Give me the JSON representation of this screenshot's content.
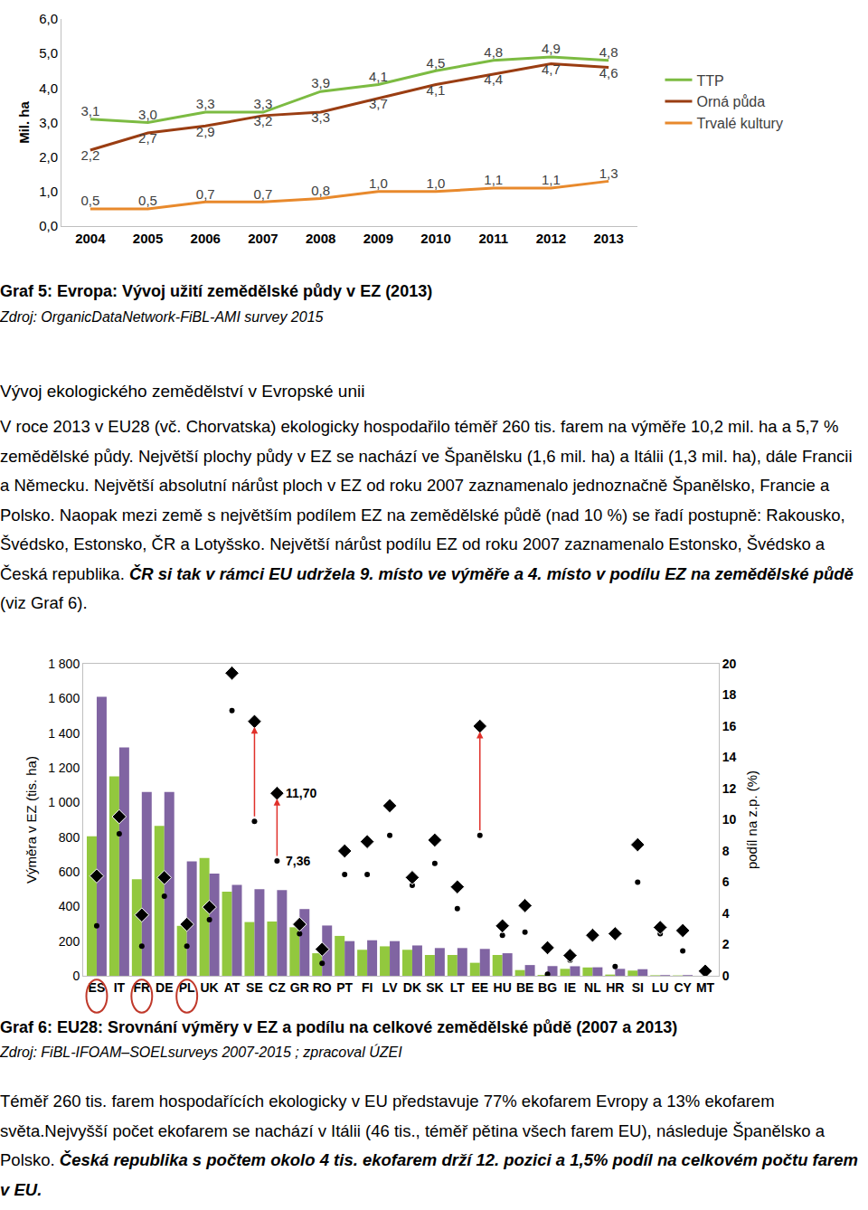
{
  "chart_data": [
    {
      "type": "line",
      "ylabel": "Mil. ha",
      "categories": [
        "2004",
        "2005",
        "2006",
        "2007",
        "2008",
        "2009",
        "2010",
        "2011",
        "2012",
        "2013"
      ],
      "ylim": [
        0,
        6
      ],
      "yticks": [
        {
          "value": 0,
          "label": "0,0"
        },
        {
          "value": 1,
          "label": "1,0"
        },
        {
          "value": 2,
          "label": "2,0"
        },
        {
          "value": 3,
          "label": "3,0"
        },
        {
          "value": 4,
          "label": "4,0"
        },
        {
          "value": 5,
          "label": "5,0"
        },
        {
          "value": 6,
          "label": "6,0"
        }
      ],
      "grid": false,
      "legend": "right",
      "data_labels": true,
      "series": [
        {
          "name": "TTP",
          "color": "#7cbb42",
          "values": [
            3.1,
            3.0,
            3.3,
            3.3,
            3.9,
            4.1,
            4.5,
            4.8,
            4.9,
            4.8
          ],
          "value_labels": [
            "3,1",
            "3,0",
            "3,3",
            "3,3",
            "3,9",
            "4,1",
            "4,5",
            "4,8",
            "4,9",
            "4,8"
          ]
        },
        {
          "name": "Orná půda",
          "color": "#9a3d12",
          "values": [
            2.2,
            2.7,
            2.9,
            3.2,
            3.3,
            3.7,
            4.1,
            4.4,
            4.7,
            4.6
          ],
          "value_labels": [
            "2,2",
            "2,7",
            "2,9",
            "3,2",
            "3,3",
            "3,7",
            "4,1",
            "4,4",
            "4,7",
            "4,6"
          ]
        },
        {
          "name": "Trvalé kultury",
          "color": "#e8892c",
          "values": [
            0.5,
            0.5,
            0.7,
            0.7,
            0.8,
            1.0,
            1.0,
            1.1,
            1.1,
            1.3
          ],
          "value_labels": [
            "0,5",
            "0,5",
            "0,7",
            "0,7",
            "0,8",
            "1,0",
            "1,0",
            "1,1",
            "1,1",
            "1,3"
          ]
        }
      ]
    },
    {
      "type": "bar",
      "ylabel": "Výměra v EZ (tis. ha)",
      "y2label": "podíl na z.p. (%)",
      "categories": [
        "ES",
        "IT",
        "FR",
        "DE",
        "PL",
        "UK",
        "AT",
        "SE",
        "CZ",
        "GR",
        "RO",
        "PT",
        "FI",
        "LV",
        "DK",
        "SK",
        "LT",
        "EE",
        "HU",
        "BE",
        "BG",
        "IE",
        "NL",
        "HR",
        "SI",
        "LU",
        "CY",
        "MT"
      ],
      "ylim": [
        0,
        1800
      ],
      "yticks": [
        0,
        200,
        400,
        600,
        800,
        {
          "value": 1000,
          "label": "1 000"
        },
        {
          "value": 1200,
          "label": "1 200"
        },
        {
          "value": 1400,
          "label": "1 400"
        },
        {
          "value": 1600,
          "label": "1 600"
        },
        {
          "value": 1800,
          "label": "1 800"
        }
      ],
      "y2lim": [
        0,
        20
      ],
      "y2ticks": [
        0,
        2,
        4,
        6,
        8,
        10,
        12,
        14,
        16,
        18,
        20
      ],
      "grid": false,
      "series": [
        {
          "type": "bar",
          "color": "#92c83e",
          "values": [
            805,
            1150,
            557,
            865,
            288,
            680,
            485,
            310,
            313,
            280,
            130,
            230,
            150,
            170,
            150,
            120,
            120,
            75,
            120,
            33,
            5,
            40,
            48,
            7,
            30,
            3,
            2,
            0
          ]
        },
        {
          "type": "bar",
          "color": "#8064a2",
          "values": [
            1610,
            1317,
            1060,
            1060,
            660,
            590,
            525,
            500,
            495,
            385,
            290,
            200,
            205,
            200,
            175,
            160,
            160,
            155,
            130,
            62,
            56,
            55,
            49,
            40,
            38,
            4,
            4,
            0
          ]
        },
        {
          "type": "scatter",
          "axis": "y2",
          "marker": "circle",
          "color": "#000000",
          "values": [
            3.2,
            9.1,
            1.9,
            5.1,
            1.9,
            3.6,
            17.0,
            9.9,
            7.36,
            2.7,
            0.8,
            6.5,
            6.5,
            9.0,
            5.8,
            7.2,
            4.3,
            9.0,
            2.6,
            2.8,
            0.1,
            1.0,
            2.4,
            0.6,
            6.0,
            2.7,
            1.6,
            0.2
          ]
        },
        {
          "type": "scatter",
          "axis": "y2",
          "marker": "diamond",
          "color": "#000000",
          "values": [
            6.4,
            10.2,
            3.9,
            6.3,
            3.3,
            4.4,
            19.4,
            16.3,
            11.7,
            3.3,
            1.7,
            8.0,
            8.6,
            10.9,
            6.3,
            8.7,
            5.7,
            16.0,
            3.2,
            4.5,
            1.8,
            1.3,
            2.6,
            2.7,
            8.4,
            3.1,
            2.9,
            0.3
          ]
        }
      ],
      "annotations": [
        {
          "text": "11,70",
          "x": "CZ",
          "y": 11.7,
          "axis": "y2"
        },
        {
          "text": "7,36",
          "x": "CZ",
          "y": 7.36,
          "axis": "y2"
        }
      ]
    }
  ],
  "captions": [
    {
      "title": "Graf 5: Evropa: Vývoj užití zemědělské půdy v EZ (2013)",
      "source": "Zdroj: OrganicDataNetwork-FiBL-AMI survey 2015"
    },
    {
      "title": "Graf 6: EU28: Srovnání výměry v EZ a podílu na celkové zemědělské půdě (2007 a 2013)",
      "source": "Zdroj: FiBL-IFOAM–SOELsurveys 2007-2015 ; zpracoval ÚZEI"
    }
  ],
  "heading": "Vývoj ekologického zemědělství v Evropské unii",
  "paragraphs": [
    [
      {
        "text": "V roce 2013 v EU28 (vč. Chorvatska) ekologicky hospodařilo téměř 260 tis. farem na výměře 10,2 mil. ha a 5,7 % zemědělské půdy. Největší plochy půdy v EZ se nachází ve Španělsku (1,6 mil. ha) a Itálii (1,3 mil. ha), dále Francii a Německu. Největší absolutní nárůst ploch v EZ od roku 2007 zaznamenalo jednoznačně Španělsko, Francie a Polsko. Naopak mezi země s největším podílem EZ na zemědělské půdě (nad 10 %) se řadí postupně: Rakousko, Švédsko, Estonsko, ČR a Lotyšsko. Největší nárůst podílu EZ od roku 2007 zaznamenalo Estonsko, Švédsko a Česká republika. ",
        "style": "normal"
      },
      {
        "text": "ČR si tak v rámci EU udržela 9. místo ve výměře a 4. místo v podílu EZ na zemědělské půdě",
        "style": "bold-italic"
      },
      {
        "text": " (viz Graf 6).",
        "style": "normal"
      }
    ],
    [
      {
        "text": "Téměř 260 tis. farem hospodařících ekologicky v EU představuje 77% ekofarem Evropy a 13% ekofarem světa.Nejvyšší počet ekofarem se nachází v Itálii (46 tis., téměř pětina všech farem EU), následuje Španělsko a Polsko. ",
        "style": "normal"
      },
      {
        "text": "Česká republika s počtem okolo 4 tis. ekofarem drží 12. pozici a 1,5% podíl na celkovém počtu farem v EU.",
        "style": "bold-italic"
      }
    ]
  ]
}
